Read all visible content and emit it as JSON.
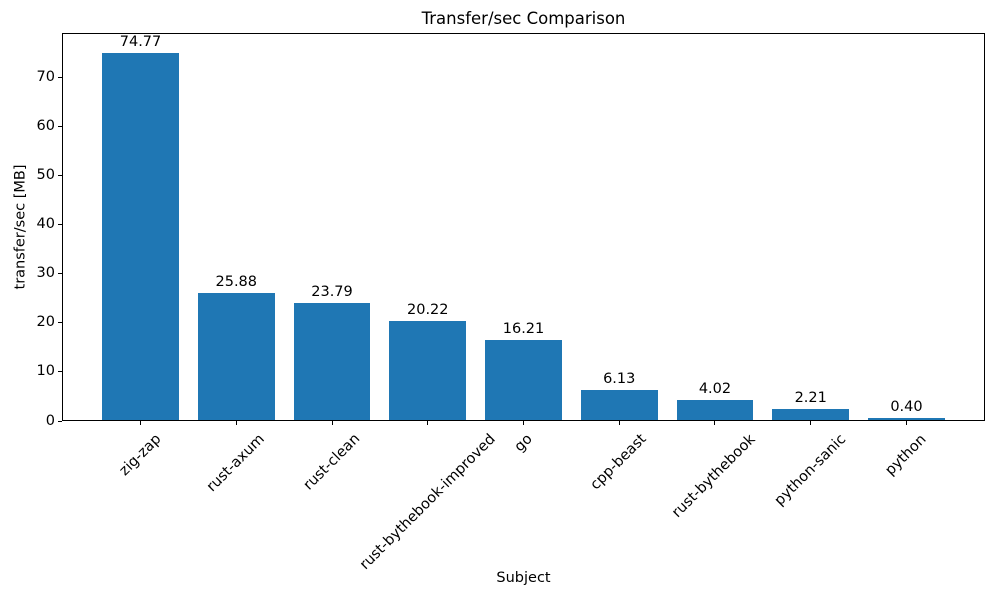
{
  "figure": {
    "background": "#ffffff"
  },
  "chart_data": {
    "type": "bar",
    "title": "Transfer/sec Comparison",
    "xlabel": "Subject",
    "ylabel": "transfer/sec [MB]",
    "categories": [
      "zig-zap",
      "rust-axum",
      "rust-clean",
      "rust-bythebook-improved",
      "go",
      "cpp-beast",
      "rust-bythebook",
      "python-sanic",
      "python"
    ],
    "values": [
      74.77,
      25.88,
      23.79,
      20.22,
      16.21,
      6.13,
      4.02,
      2.21,
      0.4
    ],
    "value_labels": [
      "74.77",
      "25.88",
      "23.79",
      "20.22",
      "16.21",
      "6.13",
      "4.02",
      "2.21",
      "0.40"
    ],
    "yticks": [
      0,
      10,
      20,
      30,
      40,
      50,
      60,
      70
    ],
    "ylim": [
      0,
      79
    ],
    "xtick_rotation_deg": 45,
    "bar_color": "#1f77b4",
    "text_color": "#000000",
    "spine_color": "#000000",
    "grid": false,
    "legend": null
  }
}
